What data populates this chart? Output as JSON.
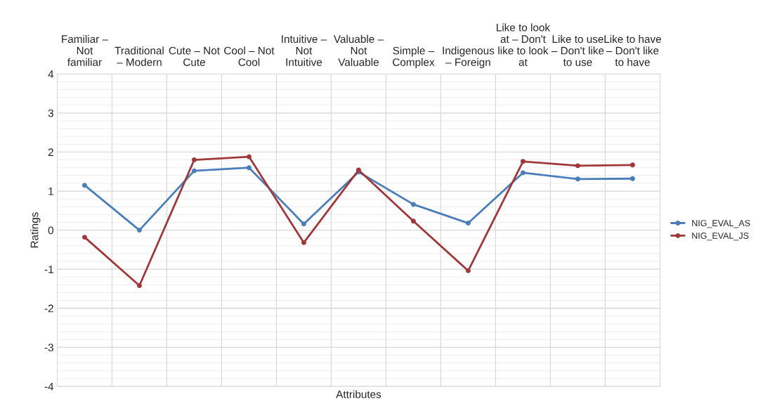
{
  "chart_data": {
    "type": "line",
    "xlabel": "Attributes",
    "ylabel": "Ratings",
    "categories": [
      "Familiar –\nNot\nfamiliar",
      "Traditional\n– Modern",
      "Cute – Not\nCute",
      "Cool – Not\nCool",
      "Intuitive –\nNot\nIntuitive",
      "Valuable –\nNot\nValuable",
      "Simple –\nComplex",
      "Indigenous\n– Foreign",
      "Like to look\nat – Don't\nlike to look\nat",
      "Like to use\n– Don't like\nto use",
      "Like to have\n– Don't like\nto have"
    ],
    "series": [
      {
        "name": "NIG_EVAL_AS",
        "color": "#4a7ebb",
        "values": [
          1.15,
          0.0,
          1.52,
          1.6,
          0.16,
          1.49,
          0.66,
          0.18,
          1.47,
          1.31,
          1.32
        ]
      },
      {
        "name": "NIG_EVAL_JS",
        "color": "#a0383a",
        "values": [
          -0.18,
          -1.42,
          1.8,
          1.88,
          -0.32,
          1.54,
          0.23,
          -1.04,
          1.76,
          1.65,
          1.67
        ]
      }
    ],
    "ylim": [
      -4,
      4
    ],
    "yticks": [
      -4,
      -3,
      -2,
      -1,
      0,
      1,
      2,
      3,
      4
    ],
    "grid": true,
    "legend": "right",
    "marker": "circle",
    "line_style": "solid"
  }
}
